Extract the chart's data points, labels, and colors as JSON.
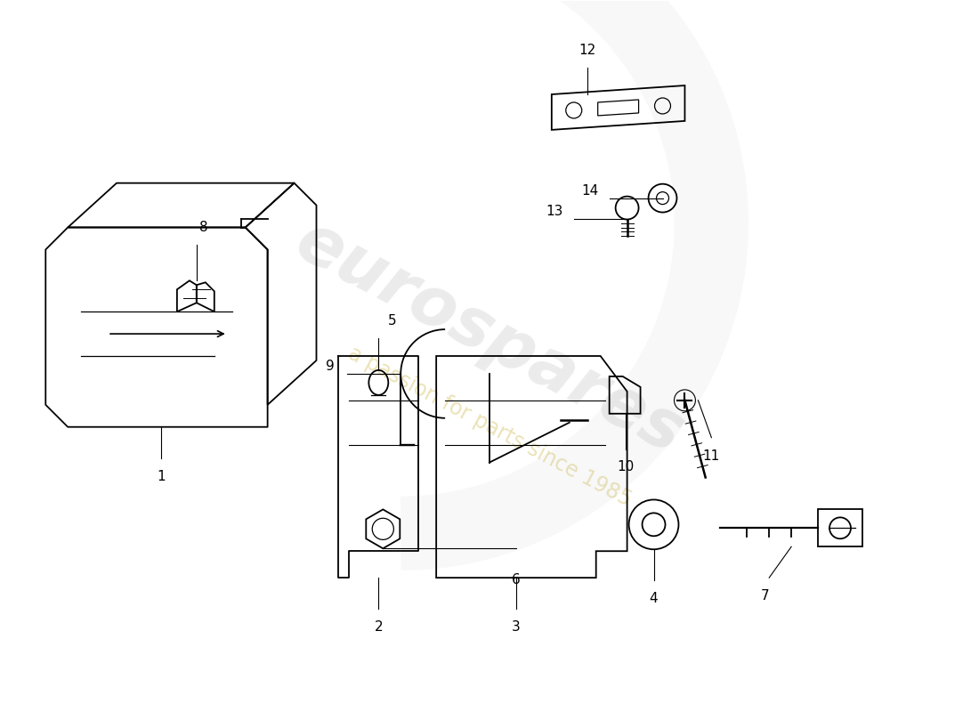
{
  "background_color": "#ffffff",
  "line_color": "#000000",
  "text_color": "#000000",
  "label_fontsize": 11,
  "watermark_color": "#d0d0d0",
  "watermark_alpha": 0.4
}
